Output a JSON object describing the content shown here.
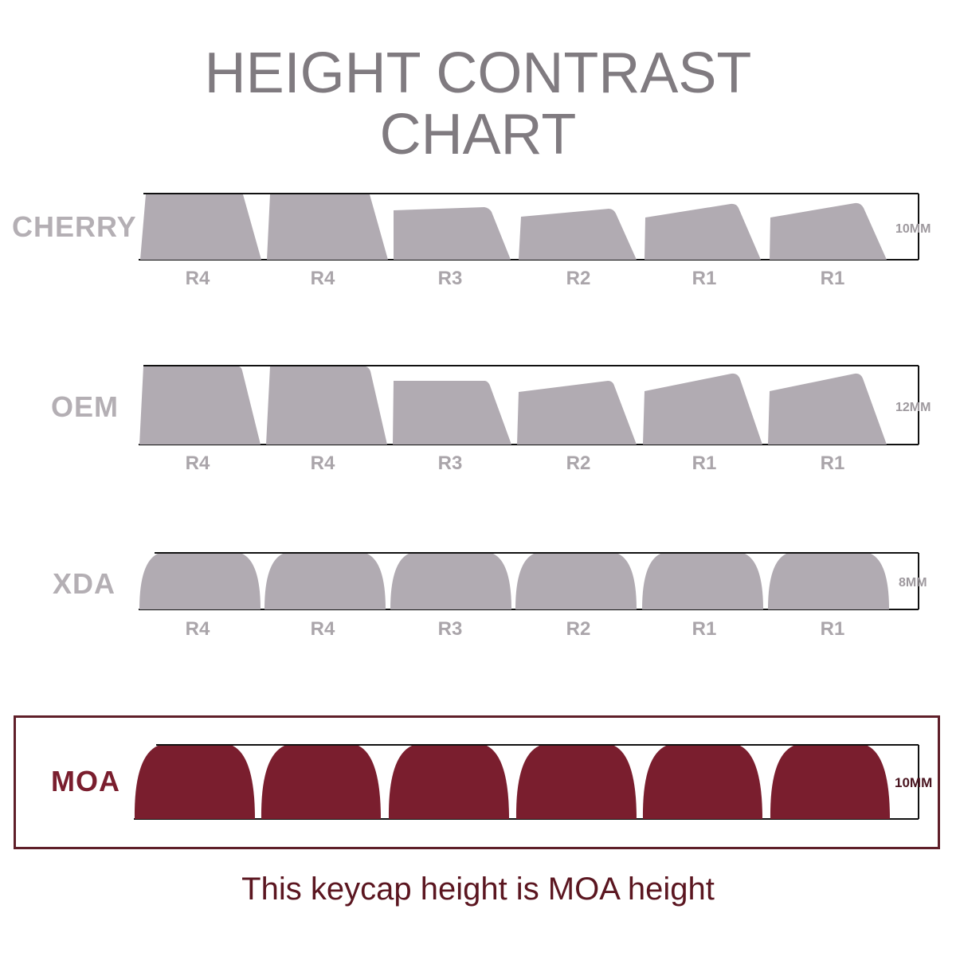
{
  "title": {
    "line1": "HEIGHT CONTRAST",
    "line2": "CHART"
  },
  "colors": {
    "title": "#807b80",
    "keycap_gray": "#b1abb2",
    "moa": "#7a1e2e",
    "label_gray": "#aaa5aa",
    "frame": "#5f1f29"
  },
  "profiles": [
    {
      "name": "CHERRY",
      "height": "10MM",
      "rows": [
        "R4",
        "R4",
        "R3",
        "R2",
        "R1",
        "R1"
      ]
    },
    {
      "name": "OEM",
      "height": "12MM",
      "rows": [
        "R4",
        "R4",
        "R3",
        "R2",
        "R1",
        "R1"
      ]
    },
    {
      "name": "XDA",
      "height": "8MM",
      "rows": [
        "R4",
        "R4",
        "R3",
        "R2",
        "R1",
        "R1"
      ]
    },
    {
      "name": "MOA",
      "height": "10MM",
      "rows": []
    }
  ],
  "caption": "This keycap height is MOA height"
}
